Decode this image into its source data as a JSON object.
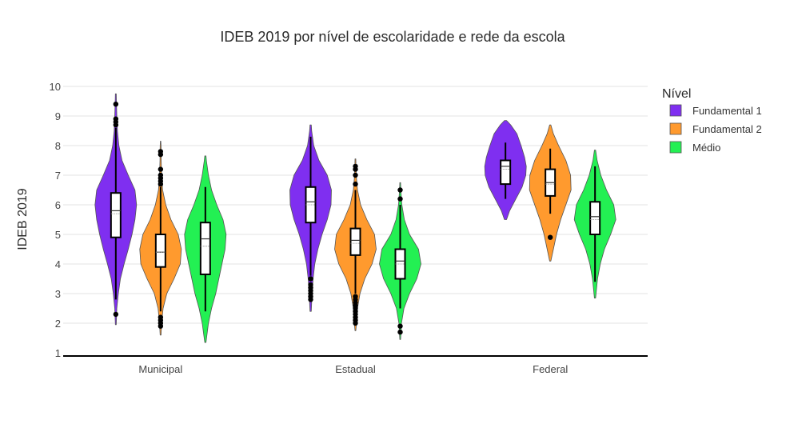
{
  "chart_data": {
    "type": "violin",
    "title": "IDEB 2019 por nível de escolaridade e rede da escola",
    "xlabel": "",
    "ylabel": "IDEB 2019",
    "ylim": [
      1,
      10
    ],
    "yticks": [
      1,
      2,
      3,
      4,
      5,
      6,
      7,
      8,
      9,
      10
    ],
    "grid": true,
    "categories": [
      "Municipal",
      "Estadual",
      "Federal"
    ],
    "legend": {
      "title": "Nível",
      "position": "right",
      "entries": [
        "Fundamental 1",
        "Fundamental 2",
        "Médio"
      ]
    },
    "series": [
      {
        "name": "Fundamental 1",
        "color": "#7f2ff0",
        "groups": [
          {
            "category": "Municipal",
            "min": 1.95,
            "q1": 4.9,
            "median": 5.8,
            "mean": 5.7,
            "q3": 6.4,
            "max": 9.75,
            "whisker_low": 2.8,
            "whisker_high": 8.6,
            "outliers": [
              2.3,
              8.7,
              8.8,
              8.9,
              9.4
            ],
            "density": [
              [
                1.95,
                0.02
              ],
              [
                2.5,
                0.05
              ],
              [
                3,
                0.12
              ],
              [
                3.5,
                0.22
              ],
              [
                4,
                0.4
              ],
              [
                4.5,
                0.6
              ],
              [
                5,
                0.78
              ],
              [
                5.5,
                0.92
              ],
              [
                6,
                1.0
              ],
              [
                6.5,
                0.92
              ],
              [
                7,
                0.6
              ],
              [
                7.5,
                0.3
              ],
              [
                8,
                0.15
              ],
              [
                8.5,
                0.08
              ],
              [
                9,
                0.05
              ],
              [
                9.5,
                0.03
              ],
              [
                9.75,
                0.02
              ]
            ]
          },
          {
            "category": "Estadual",
            "min": 2.4,
            "q1": 5.4,
            "median": 6.1,
            "mean": 6.0,
            "q3": 6.6,
            "max": 8.7,
            "whisker_low": 3.6,
            "whisker_high": 8.3,
            "outliers": [
              2.8,
              2.9,
              3.0,
              3.1,
              3.2,
              3.3,
              3.5
            ],
            "density": [
              [
                2.4,
                0.03
              ],
              [
                3,
                0.07
              ],
              [
                3.5,
                0.12
              ],
              [
                4,
                0.2
              ],
              [
                4.5,
                0.35
              ],
              [
                5,
                0.55
              ],
              [
                5.5,
                0.8
              ],
              [
                6,
                0.98
              ],
              [
                6.5,
                1.0
              ],
              [
                7,
                0.8
              ],
              [
                7.5,
                0.4
              ],
              [
                8,
                0.15
              ],
              [
                8.5,
                0.05
              ],
              [
                8.7,
                0.03
              ]
            ]
          },
          {
            "category": "Federal",
            "min": 5.5,
            "q1": 6.7,
            "median": 7.3,
            "mean": 7.2,
            "q3": 7.5,
            "max": 8.85,
            "whisker_low": 6.2,
            "whisker_high": 8.1,
            "outliers": [],
            "density": [
              [
                5.5,
                0.05
              ],
              [
                5.8,
                0.2
              ],
              [
                6.2,
                0.5
              ],
              [
                6.6,
                0.8
              ],
              [
                7,
                0.98
              ],
              [
                7.3,
                1.0
              ],
              [
                7.6,
                0.92
              ],
              [
                8,
                0.75
              ],
              [
                8.4,
                0.55
              ],
              [
                8.7,
                0.25
              ],
              [
                8.85,
                0.05
              ]
            ]
          }
        ]
      },
      {
        "name": "Fundamental 2",
        "color": "#ff9a2e",
        "groups": [
          {
            "category": "Municipal",
            "min": 1.6,
            "q1": 3.9,
            "median": 4.4,
            "mean": 4.4,
            "q3": 5.0,
            "max": 8.15,
            "whisker_low": 2.4,
            "whisker_high": 6.6,
            "outliers": [
              1.9,
              2.0,
              2.1,
              2.2,
              6.7,
              6.8,
              6.9,
              7.0,
              7.2,
              7.7,
              7.8
            ],
            "density": [
              [
                1.6,
                0.02
              ],
              [
                2,
                0.05
              ],
              [
                2.5,
                0.12
              ],
              [
                3,
                0.3
              ],
              [
                3.5,
                0.65
              ],
              [
                4,
                0.95
              ],
              [
                4.5,
                1.0
              ],
              [
                5,
                0.85
              ],
              [
                5.5,
                0.5
              ],
              [
                6,
                0.25
              ],
              [
                6.5,
                0.1
              ],
              [
                7,
                0.05
              ],
              [
                7.5,
                0.03
              ],
              [
                8,
                0.02
              ],
              [
                8.15,
                0.01
              ]
            ]
          },
          {
            "category": "Estadual",
            "min": 1.75,
            "q1": 4.3,
            "median": 4.8,
            "mean": 4.7,
            "q3": 5.2,
            "max": 7.55,
            "whisker_low": 3.0,
            "whisker_high": 6.5,
            "outliers": [
              2.0,
              2.1,
              2.2,
              2.3,
              2.4,
              2.5,
              2.6,
              2.7,
              2.8,
              2.9,
              6.7,
              7.0,
              7.2,
              7.3
            ],
            "density": [
              [
                1.75,
                0.02
              ],
              [
                2,
                0.05
              ],
              [
                2.5,
                0.1
              ],
              [
                3,
                0.22
              ],
              [
                3.5,
                0.45
              ],
              [
                4,
                0.8
              ],
              [
                4.5,
                1.0
              ],
              [
                5,
                0.92
              ],
              [
                5.5,
                0.55
              ],
              [
                6,
                0.25
              ],
              [
                6.5,
                0.1
              ],
              [
                7,
                0.04
              ],
              [
                7.55,
                0.02
              ]
            ]
          },
          {
            "category": "Federal",
            "min": 4.1,
            "q1": 6.3,
            "median": 6.75,
            "mean": 6.7,
            "q3": 7.2,
            "max": 8.7,
            "whisker_low": 5.7,
            "whisker_high": 7.9,
            "outliers": [
              4.9
            ],
            "density": [
              [
                4.1,
                0.03
              ],
              [
                4.5,
                0.15
              ],
              [
                5,
                0.3
              ],
              [
                5.5,
                0.5
              ],
              [
                6,
                0.75
              ],
              [
                6.5,
                1.0
              ],
              [
                7,
                0.98
              ],
              [
                7.5,
                0.75
              ],
              [
                8,
                0.4
              ],
              [
                8.4,
                0.15
              ],
              [
                8.7,
                0.03
              ]
            ]
          }
        ]
      },
      {
        "name": "Médio",
        "color": "#23f053",
        "groups": [
          {
            "category": "Municipal",
            "min": 1.35,
            "q1": 3.65,
            "median": 4.85,
            "mean": 4.6,
            "q3": 5.4,
            "max": 7.65,
            "whisker_low": 2.4,
            "whisker_high": 6.6,
            "outliers": [],
            "density": [
              [
                1.35,
                0.03
              ],
              [
                2,
                0.15
              ],
              [
                2.5,
                0.3
              ],
              [
                3,
                0.5
              ],
              [
                3.5,
                0.65
              ],
              [
                4,
                0.8
              ],
              [
                4.5,
                0.95
              ],
              [
                5,
                1.0
              ],
              [
                5.5,
                0.85
              ],
              [
                6,
                0.55
              ],
              [
                6.5,
                0.3
              ],
              [
                7,
                0.15
              ],
              [
                7.5,
                0.05
              ],
              [
                7.65,
                0.03
              ]
            ]
          },
          {
            "category": "Estadual",
            "min": 1.45,
            "q1": 3.5,
            "median": 4.1,
            "mean": 4.0,
            "q3": 4.5,
            "max": 6.75,
            "whisker_low": 2.5,
            "whisker_high": 6.0,
            "outliers": [
              1.7,
              1.9,
              6.2,
              6.5
            ],
            "density": [
              [
                1.45,
                0.02
              ],
              [
                2,
                0.06
              ],
              [
                2.5,
                0.18
              ],
              [
                3,
                0.45
              ],
              [
                3.5,
                0.8
              ],
              [
                4,
                1.0
              ],
              [
                4.5,
                0.88
              ],
              [
                5,
                0.45
              ],
              [
                5.5,
                0.2
              ],
              [
                6,
                0.08
              ],
              [
                6.5,
                0.03
              ],
              [
                6.75,
                0.02
              ]
            ]
          },
          {
            "category": "Federal",
            "min": 2.85,
            "q1": 5.0,
            "median": 5.6,
            "mean": 5.5,
            "q3": 6.1,
            "max": 7.85,
            "whisker_low": 3.4,
            "whisker_high": 7.3,
            "outliers": [],
            "density": [
              [
                2.85,
                0.03
              ],
              [
                3.5,
                0.12
              ],
              [
                4,
                0.25
              ],
              [
                4.5,
                0.45
              ],
              [
                5,
                0.75
              ],
              [
                5.5,
                1.0
              ],
              [
                6,
                0.9
              ],
              [
                6.5,
                0.55
              ],
              [
                7,
                0.28
              ],
              [
                7.5,
                0.1
              ],
              [
                7.85,
                0.03
              ]
            ]
          }
        ]
      }
    ]
  }
}
